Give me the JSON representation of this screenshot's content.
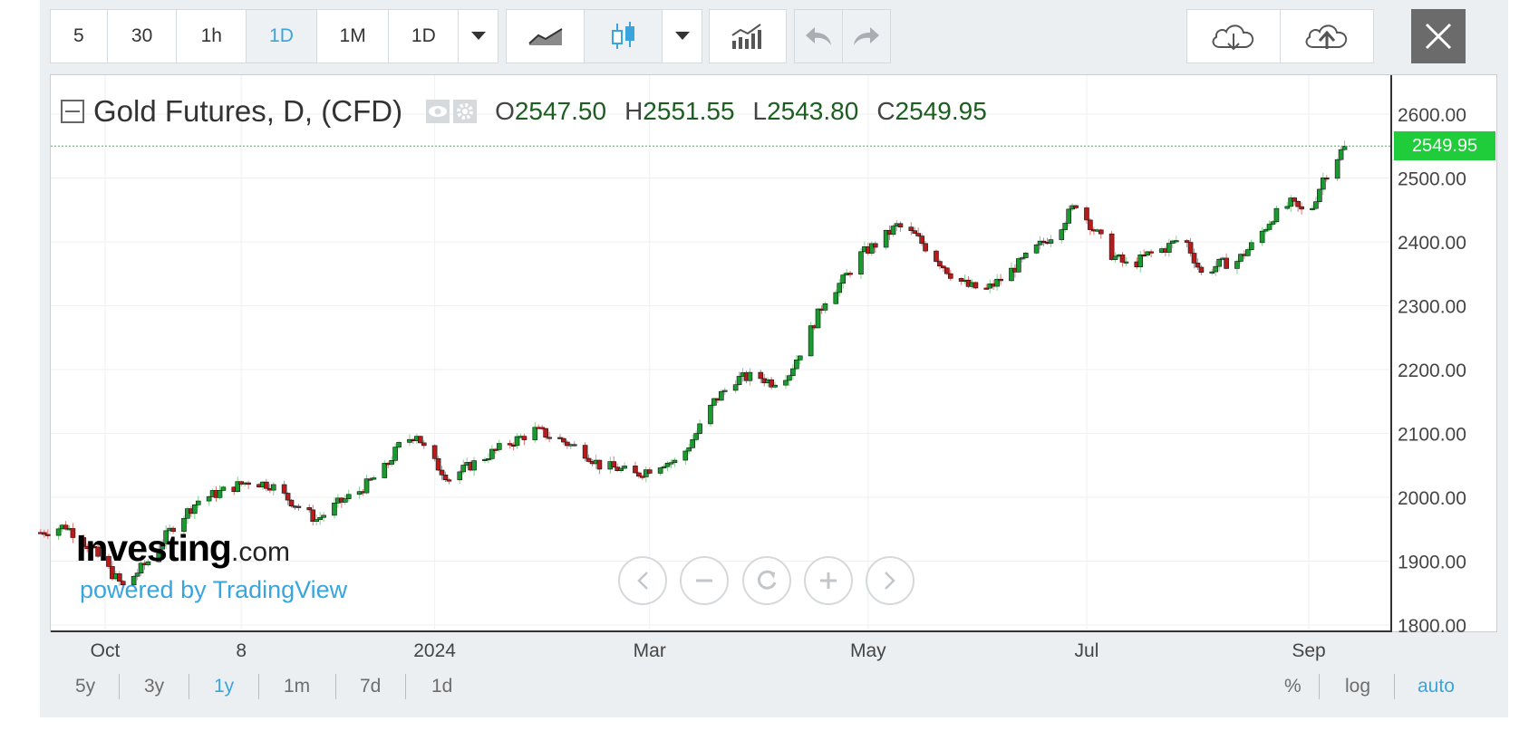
{
  "toolbar": {
    "intervals": [
      "5",
      "30",
      "1h",
      "1D",
      "1M",
      "1D"
    ],
    "active_interval": "1D",
    "icons": [
      "chevron-down-icon",
      "line-chart-icon",
      "candlestick-icon",
      "chevron-down-icon",
      "indicators-icon",
      "undo-icon",
      "redo-icon",
      "cloud-download-icon",
      "cloud-upload-icon",
      "close-icon"
    ]
  },
  "legend": {
    "title": "Gold Futures, D, (CFD)",
    "open_label": "O",
    "open": "2547.50",
    "high_label": "H",
    "high": "2551.55",
    "low_label": "L",
    "low": "2543.80",
    "close_label": "C",
    "close": "2549.95"
  },
  "branding": {
    "logo_bold": "Investing",
    "logo_suffix": ".com",
    "powered": "powered by TradingView"
  },
  "last_price_tag": "2549.95",
  "ranges": [
    "5y",
    "3y",
    "1y",
    "1m",
    "7d",
    "1d"
  ],
  "active_range": "1y",
  "scale_options": [
    "%",
    "log",
    "auto"
  ],
  "active_scale": "auto",
  "colors": {
    "up": "#1a9b2f",
    "down": "#b71c1c",
    "accent": "#39a5dc",
    "price_line": "#1fcc39"
  },
  "chart_data": {
    "type": "candlestick",
    "title": "Gold Futures, D, (CFD)",
    "ylim": [
      1800,
      2620
    ],
    "yticks": [
      1800,
      1900,
      2000,
      2100,
      2200,
      2300,
      2400,
      2500,
      2600
    ],
    "ytick_labels": [
      "1800.00",
      "1900.00",
      "2000.00",
      "2100.00",
      "2200.00",
      "2300.00",
      "2400.00",
      "2500.00",
      "2600.00"
    ],
    "xtick_labels": [
      "Oct",
      "8",
      "2024",
      "Mar",
      "May",
      "Jul",
      "Sep"
    ],
    "xtick_dates": [
      "2023-10-01",
      "2023-11-08",
      "2024-01-01",
      "2024-03-01",
      "2024-05-01",
      "2024-07-01",
      "2024-09-01"
    ],
    "date_range": [
      "2023-09-13",
      "2024-09-11"
    ],
    "last_price": 2549.95,
    "price_curve": [
      [
        "2023-09-13",
        1945
      ],
      [
        "2023-09-20",
        1955
      ],
      [
        "2023-09-27",
        1920
      ],
      [
        "2023-10-03",
        1880
      ],
      [
        "2023-10-06",
        1860
      ],
      [
        "2023-10-13",
        1900
      ],
      [
        "2023-10-20",
        1955
      ],
      [
        "2023-10-27",
        1995
      ],
      [
        "2023-11-03",
        2010
      ],
      [
        "2023-11-10",
        2025
      ],
      [
        "2023-11-16",
        2020
      ],
      [
        "2023-11-24",
        1985
      ],
      [
        "2023-11-29",
        1965
      ],
      [
        "2023-12-05",
        1990
      ],
      [
        "2023-12-11",
        2010
      ],
      [
        "2023-12-18",
        2045
      ],
      [
        "2023-12-22",
        2080
      ],
      [
        "2023-12-27",
        2100
      ],
      [
        "2023-12-30",
        2065
      ],
      [
        "2024-01-05",
        2030
      ],
      [
        "2024-01-11",
        2050
      ],
      [
        "2024-01-17",
        2070
      ],
      [
        "2024-01-22",
        2085
      ],
      [
        "2024-01-29",
        2105
      ],
      [
        "2024-02-05",
        2090
      ],
      [
        "2024-02-12",
        2070
      ],
      [
        "2024-02-16",
        2050
      ],
      [
        "2024-02-21",
        2045
      ],
      [
        "2024-02-26",
        2035
      ],
      [
        "2024-03-01",
        2045
      ],
      [
        "2024-03-05",
        2055
      ],
      [
        "2024-03-09",
        2055
      ],
      [
        "2024-03-14",
        2100
      ],
      [
        "2024-03-19",
        2150
      ],
      [
        "2024-03-25",
        2185
      ],
      [
        "2024-03-31",
        2190
      ],
      [
        "2024-04-04",
        2180
      ],
      [
        "2024-04-09",
        2195
      ],
      [
        "2024-04-14",
        2250
      ],
      [
        "2024-04-19",
        2310
      ],
      [
        "2024-04-24",
        2340
      ],
      [
        "2024-04-29",
        2380
      ],
      [
        "2024-05-04",
        2400
      ],
      [
        "2024-05-09",
        2425
      ],
      [
        "2024-05-14",
        2410
      ],
      [
        "2024-05-19",
        2380
      ],
      [
        "2024-05-24",
        2350
      ],
      [
        "2024-05-29",
        2330
      ],
      [
        "2024-06-03",
        2325
      ],
      [
        "2024-06-08",
        2345
      ],
      [
        "2024-06-13",
        2370
      ],
      [
        "2024-06-18",
        2395
      ],
      [
        "2024-06-23",
        2420
      ],
      [
        "2024-06-28",
        2460
      ],
      [
        "2024-07-03",
        2420
      ],
      [
        "2024-07-08",
        2380
      ],
      [
        "2024-07-13",
        2360
      ],
      [
        "2024-07-18",
        2380
      ],
      [
        "2024-07-23",
        2390
      ],
      [
        "2024-07-28",
        2410
      ],
      [
        "2024-08-02",
        2350
      ],
      [
        "2024-08-07",
        2365
      ],
      [
        "2024-08-12",
        2370
      ],
      [
        "2024-08-17",
        2400
      ],
      [
        "2024-08-22",
        2440
      ],
      [
        "2024-08-27",
        2460
      ],
      [
        "2024-09-01",
        2440
      ],
      [
        "2024-09-05",
        2500
      ],
      [
        "2024-09-11",
        2549.95
      ]
    ]
  }
}
